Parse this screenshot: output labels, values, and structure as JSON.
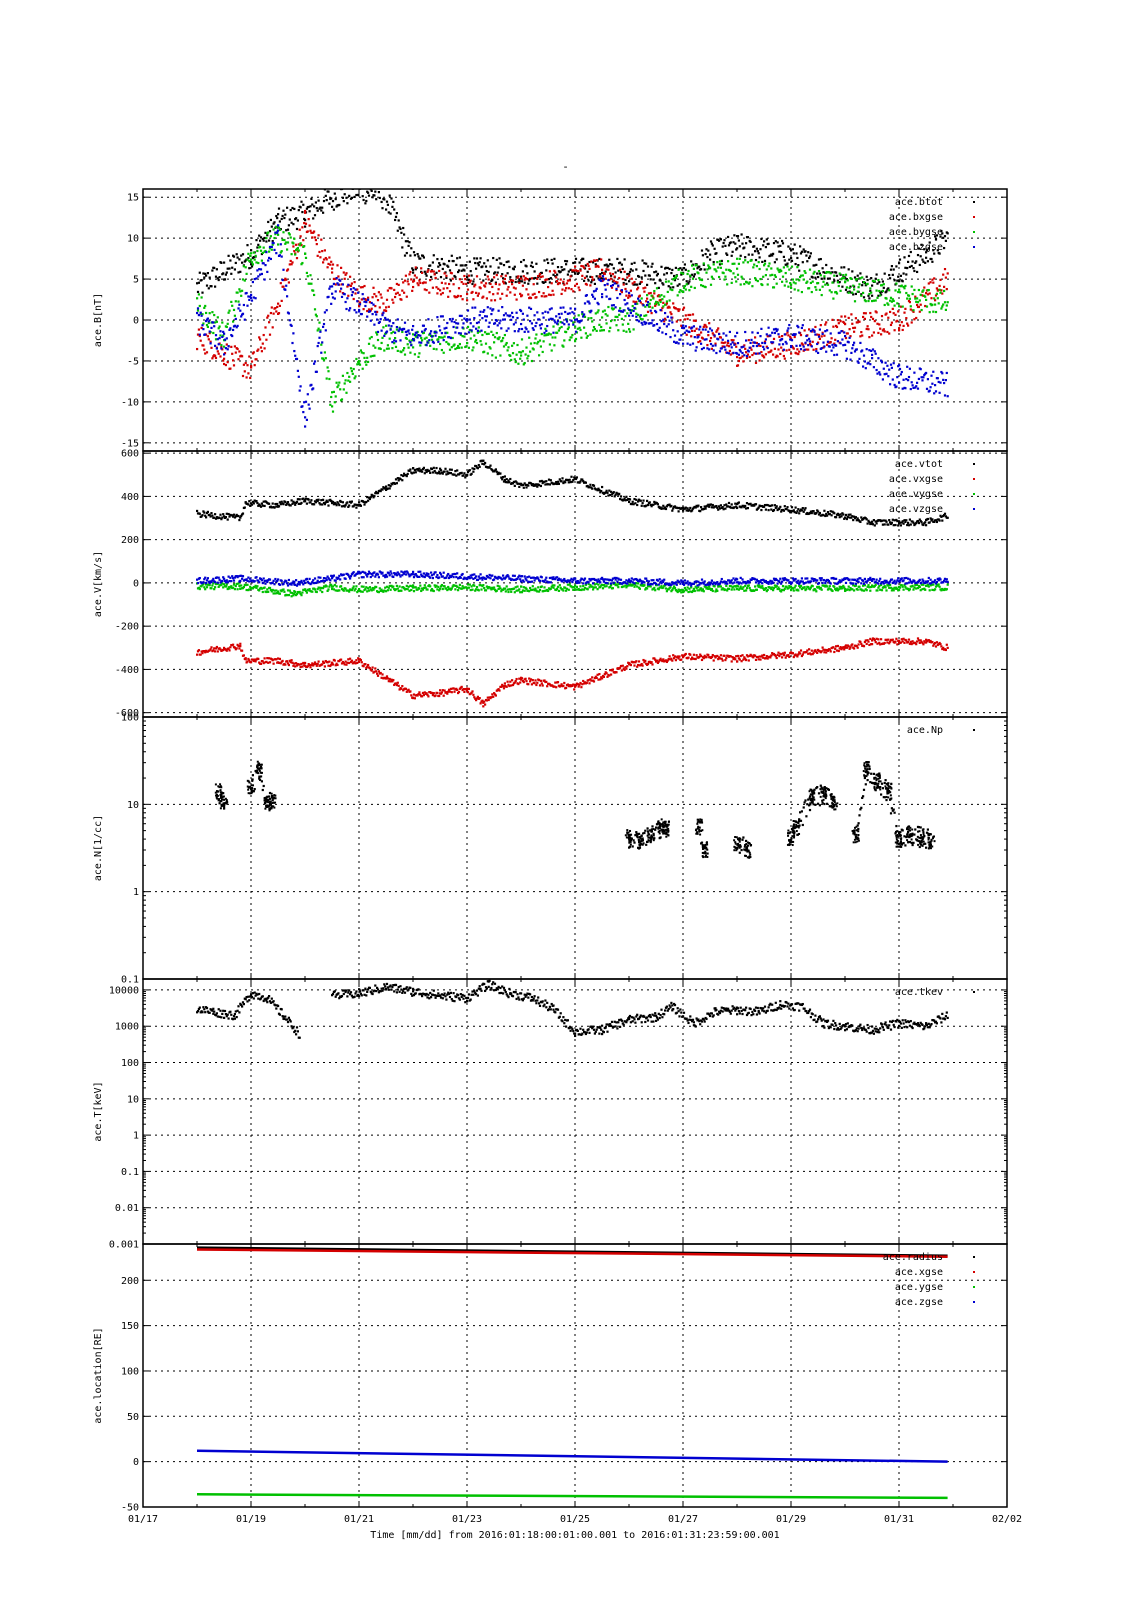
{
  "title": "-",
  "footer": {
    "time_label": "Time [mm/dd]",
    "from_label": "from",
    "from_value": "2016:01:18:00:01:00.001",
    "to_label": "to",
    "to_value": "2016:01:31:23:59:00.001"
  },
  "colors": {
    "black": "#000000",
    "red": "#d40000",
    "green": "#00c000",
    "blue": "#0000d0"
  },
  "chart_data": [
    {
      "type": "scatter",
      "ylabel": "ace.B[nT]",
      "ylim": [
        -16,
        16
      ],
      "yticks": [
        -15,
        -10,
        -5,
        0,
        5,
        10,
        15
      ],
      "yscale": "linear",
      "grid": true,
      "legend_position": "top-right",
      "x_unit": "days since 01/17 00:00",
      "series": [
        {
          "name": "ace.btot",
          "color": "#000000",
          "x": [
            1.0,
            1.5,
            2.0,
            2.5,
            3.0,
            3.5,
            4.0,
            4.5,
            5.0,
            6.0,
            7.0,
            8.0,
            9.0,
            10.0,
            10.5,
            11.0,
            12.0,
            13.0,
            13.5,
            14.0,
            14.5,
            14.9
          ],
          "y": [
            4,
            6,
            8,
            12,
            13,
            15,
            16,
            15,
            7,
            6,
            6,
            6,
            6,
            5,
            8,
            9,
            8,
            5,
            4,
            6,
            8,
            10
          ]
        },
        {
          "name": "ace.bxgse",
          "color": "#d40000",
          "x": [
            1.0,
            1.5,
            2.0,
            2.5,
            3.0,
            3.5,
            4.0,
            4.5,
            5.0,
            6.0,
            7.0,
            8.0,
            8.5,
            9.0,
            10.0,
            11.0,
            12.0,
            13.0,
            14.0,
            14.9
          ],
          "y": [
            -2,
            -4,
            -6,
            2,
            12,
            6,
            3,
            2,
            5,
            4,
            4,
            5,
            6,
            4,
            0,
            -4,
            -3,
            -1,
            0,
            5
          ]
        },
        {
          "name": "ace.bygse",
          "color": "#00c000",
          "x": [
            1.0,
            1.5,
            2.0,
            2.5,
            3.0,
            3.5,
            4.0,
            4.5,
            5.0,
            6.0,
            7.0,
            8.0,
            8.5,
            9.0,
            10.0,
            11.0,
            12.0,
            13.0,
            14.0,
            14.9
          ],
          "y": [
            2,
            -2,
            8,
            10,
            8,
            -10,
            -5,
            -2,
            -3,
            -2,
            -4,
            -1,
            0,
            0,
            5,
            6,
            5,
            4,
            3,
            2
          ]
        },
        {
          "name": "ace.bzgse",
          "color": "#0000d0",
          "x": [
            1.0,
            1.5,
            2.0,
            2.5,
            3.0,
            3.5,
            4.0,
            4.5,
            5.0,
            6.0,
            7.0,
            8.0,
            8.5,
            9.0,
            10.0,
            11.0,
            12.0,
            13.0,
            13.5,
            14.0,
            14.9
          ],
          "y": [
            0,
            -3,
            3,
            10,
            -12,
            4,
            2,
            -1,
            -2,
            0,
            0,
            0,
            4,
            2,
            -2,
            -3,
            -2,
            -3,
            -5,
            -7,
            -8
          ]
        }
      ]
    },
    {
      "type": "scatter",
      "ylabel": "ace.V[km/s]",
      "ylim": [
        -620,
        610
      ],
      "yticks": [
        -600,
        -400,
        -200,
        0,
        200,
        400,
        600
      ],
      "yscale": "linear",
      "grid": true,
      "legend_position": "top-right",
      "x_unit": "days since 01/17 00:00",
      "series": [
        {
          "name": "ace.vtot",
          "color": "#000000",
          "x": [
            1.0,
            1.8,
            1.9,
            2.5,
            3.0,
            3.5,
            4.0,
            4.5,
            5.0,
            5.5,
            6.0,
            6.3,
            6.7,
            7.0,
            8.0,
            9.0,
            10.0,
            11.0,
            12.0,
            13.0,
            13.5,
            14.0,
            14.5,
            14.9
          ],
          "y": [
            320,
            300,
            370,
            360,
            380,
            370,
            360,
            440,
            520,
            520,
            500,
            560,
            480,
            450,
            480,
            380,
            340,
            360,
            340,
            310,
            280,
            280,
            280,
            310
          ]
        },
        {
          "name": "ace.vxgse",
          "color": "#d40000",
          "x": [
            1.0,
            1.8,
            1.9,
            2.5,
            3.0,
            3.5,
            4.0,
            4.5,
            5.0,
            5.5,
            6.0,
            6.3,
            6.7,
            7.0,
            8.0,
            9.0,
            10.0,
            11.0,
            12.0,
            13.0,
            13.5,
            14.0,
            14.5,
            14.9
          ],
          "y": [
            -320,
            -290,
            -360,
            -360,
            -380,
            -370,
            -360,
            -440,
            -520,
            -510,
            -490,
            -560,
            -470,
            -450,
            -480,
            -380,
            -340,
            -350,
            -330,
            -300,
            -270,
            -270,
            -270,
            -300
          ]
        },
        {
          "name": "ace.vygse",
          "color": "#00c000",
          "x": [
            1.0,
            1.8,
            2.8,
            3.5,
            4.0,
            5.0,
            6.0,
            7.0,
            8.0,
            9.0,
            10.0,
            11.0,
            12.0,
            13.0,
            14.0,
            14.9
          ],
          "y": [
            -15,
            -15,
            -50,
            -20,
            -30,
            -25,
            -20,
            -30,
            -20,
            -10,
            -30,
            -25,
            -25,
            -25,
            -20,
            -20
          ]
        },
        {
          "name": "ace.vzgse",
          "color": "#0000d0",
          "x": [
            1.0,
            1.8,
            2.8,
            3.5,
            4.0,
            5.0,
            6.0,
            7.0,
            8.0,
            9.0,
            10.0,
            11.0,
            12.0,
            13.0,
            14.0,
            14.9
          ],
          "y": [
            10,
            20,
            0,
            20,
            40,
            40,
            30,
            20,
            10,
            10,
            0,
            10,
            10,
            10,
            10,
            10
          ]
        }
      ]
    },
    {
      "type": "scatter",
      "ylabel": "ace.N[1/cc]",
      "ylim": [
        0.1,
        100
      ],
      "yticks": [
        0.1,
        1,
        10,
        100
      ],
      "yscale": "log",
      "grid": true,
      "legend_position": "top-right",
      "x_unit": "days since 01/17 00:00",
      "series": [
        {
          "name": "ace.Np",
          "color": "#000000",
          "x": [
            1.4,
            1.5,
            2.0,
            2.15,
            2.3,
            2.4,
            9.0,
            9.2,
            9.4,
            9.6,
            9.7,
            10.3,
            10.4,
            11.0,
            11.2,
            12.0,
            12.1,
            12.4,
            12.6,
            12.8,
            13.2,
            13.4,
            13.6,
            13.8,
            14.0,
            14.2,
            14.4,
            14.6
          ],
          "y": [
            14,
            11,
            16,
            25,
            10,
            11,
            4.2,
            3.8,
            4.5,
            5.5,
            5.2,
            5.5,
            3.0,
            3.6,
            3.0,
            4.2,
            5.5,
            12,
            13,
            10,
            4.5,
            25,
            18,
            14,
            4,
            4.5,
            4.2,
            3.8
          ]
        }
      ]
    },
    {
      "type": "scatter",
      "ylabel": "ace.T[keV]",
      "ylim": [
        0.001,
        20000
      ],
      "yticks": [
        0.001,
        0.01,
        0.1,
        1,
        10,
        100,
        1000,
        10000
      ],
      "ytick_labels": [
        "0.001",
        "0.01",
        "0.1",
        "1",
        "10",
        "100",
        "1000",
        "10000"
      ],
      "yscale": "log",
      "grid": true,
      "legend_position": "top-right",
      "x_unit": "days since 01/17 00:00",
      "series": [
        {
          "name": "ace.tkev",
          "color": "#000000",
          "x": [
            1.0,
            1.3,
            1.7,
            2.0,
            2.3,
            2.6,
            2.9,
            3.5,
            4.0,
            4.5,
            5.0,
            5.5,
            6.0,
            6.4,
            6.8,
            7.2,
            7.6,
            8.0,
            8.5,
            9.0,
            9.5,
            9.8,
            10.2,
            10.6,
            11.0,
            11.4,
            11.8,
            12.2,
            12.6,
            13.0,
            13.5,
            14.0,
            14.5,
            14.9
          ],
          "y": [
            3000,
            2500,
            2000,
            8000,
            6000,
            2000,
            600,
            7000,
            8000,
            12000,
            9000,
            7000,
            6000,
            14000,
            8000,
            6000,
            3000,
            700,
            800,
            1500,
            1800,
            3500,
            1200,
            2500,
            2800,
            2500,
            4000,
            3500,
            1200,
            1000,
            800,
            1200,
            1000,
            2000
          ]
        }
      ]
    },
    {
      "type": "line",
      "ylabel": "ace.location[RE]",
      "ylim": [
        -50,
        240
      ],
      "yticks": [
        -50,
        0,
        50,
        100,
        150,
        200
      ],
      "yscale": "linear",
      "grid": true,
      "legend_position": "top-right",
      "x_unit": "days since 01/17 00:00",
      "series": [
        {
          "name": "ace.radius",
          "color": "#000000",
          "x": [
            1.0,
            14.9
          ],
          "y": [
            236,
            227
          ]
        },
        {
          "name": "ace.xgse",
          "color": "#d40000",
          "x": [
            1.0,
            14.9
          ],
          "y": [
            234,
            226
          ]
        },
        {
          "name": "ace.ygse",
          "color": "#00c000",
          "x": [
            1.0,
            14.9
          ],
          "y": [
            -36,
            -40
          ]
        },
        {
          "name": "ace.zgse",
          "color": "#0000d0",
          "x": [
            1.0,
            14.9
          ],
          "y": [
            12,
            0
          ]
        }
      ]
    }
  ],
  "x_axis": {
    "xlim": [
      0,
      16
    ],
    "ticks": [
      0,
      2,
      4,
      6,
      8,
      10,
      12,
      14,
      16
    ],
    "tick_labels": [
      "01/17",
      "01/19",
      "01/21",
      "01/23",
      "01/25",
      "01/27",
      "01/29",
      "01/31",
      "02/02"
    ]
  }
}
